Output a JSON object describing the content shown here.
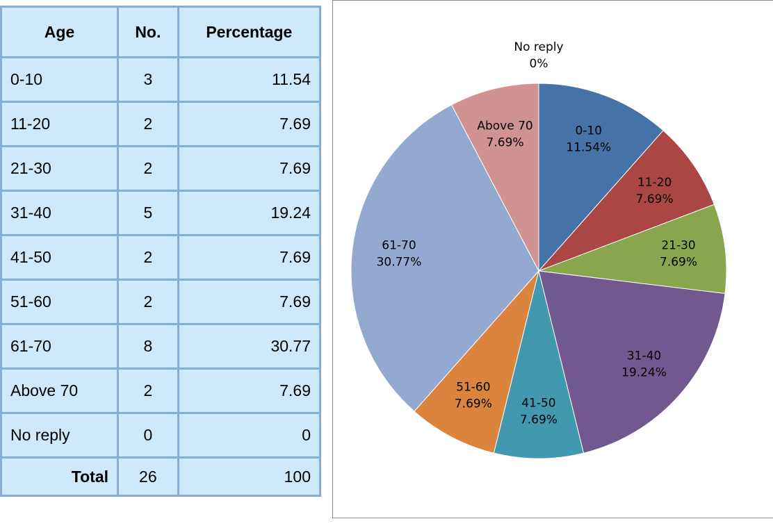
{
  "table": {
    "header": [
      "Age",
      "No.",
      "Percentage"
    ],
    "rows": [
      [
        "0-10",
        3,
        11.54
      ],
      [
        "11-20",
        2,
        7.69
      ],
      [
        "21-30",
        2,
        7.69
      ],
      [
        "31-40",
        5,
        19.24
      ],
      [
        "41-50",
        2,
        7.69
      ],
      [
        "51-60",
        2,
        7.69
      ],
      [
        "61-70",
        8,
        30.77
      ],
      [
        "Above 70",
        2,
        7.69
      ],
      [
        "No reply",
        0,
        0
      ]
    ],
    "total": [
      "Total",
      26,
      100
    ]
  },
  "chart_data": {
    "type": "pie",
    "categories": [
      "0-10",
      "11-20",
      "21-30",
      "31-40",
      "41-50",
      "51-60",
      "61-70",
      "Above 70",
      "No reply"
    ],
    "values": [
      11.54,
      7.69,
      7.69,
      19.24,
      7.69,
      7.69,
      30.77,
      7.69,
      0
    ],
    "value_labels": [
      "11.54%",
      "7.69%",
      "7.69%",
      "19.24%",
      "7.69%",
      "7.69%",
      "30.77%",
      "7.69%",
      "0%"
    ],
    "colors": [
      "#4572a7",
      "#aa4643",
      "#89a54e",
      "#71588f",
      "#4198af",
      "#db843d",
      "#93a9cf",
      "#d19392",
      "#b9cd96"
    ]
  }
}
